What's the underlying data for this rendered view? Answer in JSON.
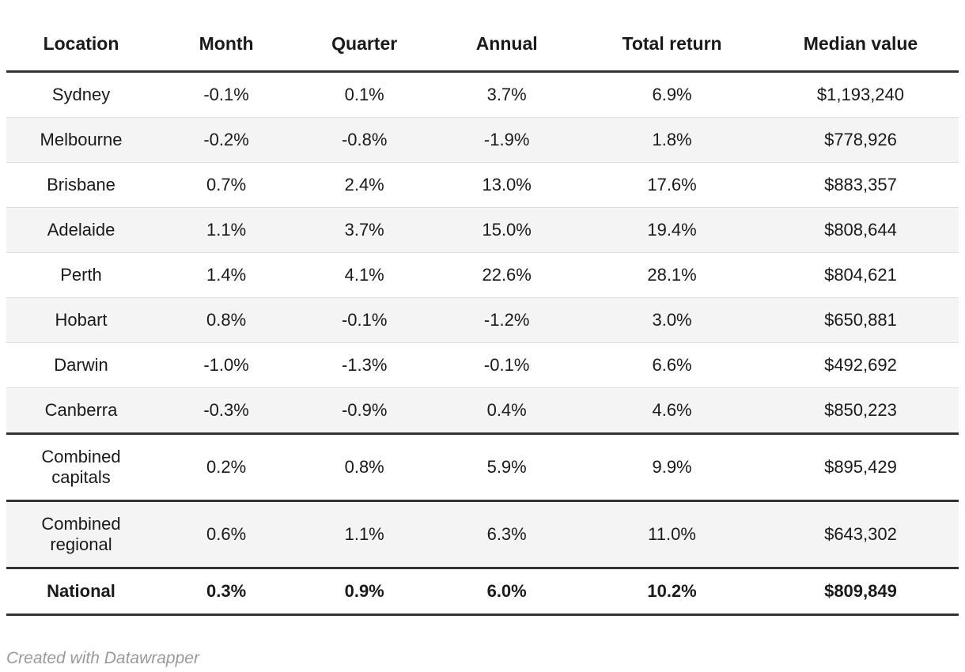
{
  "chart_data": {
    "type": "table",
    "columns": [
      "Location",
      "Month",
      "Quarter",
      "Annual",
      "Total return",
      "Median value"
    ],
    "rows": [
      {
        "cells": [
          "Sydney",
          "-0.1%",
          "0.1%",
          "3.7%",
          "6.9%",
          "$1,193,240"
        ],
        "bold": false,
        "divider_after": false
      },
      {
        "cells": [
          "Melbourne",
          "-0.2%",
          "-0.8%",
          "-1.9%",
          "1.8%",
          "$778,926"
        ],
        "bold": false,
        "divider_after": false
      },
      {
        "cells": [
          "Brisbane",
          "0.7%",
          "2.4%",
          "13.0%",
          "17.6%",
          "$883,357"
        ],
        "bold": false,
        "divider_after": false
      },
      {
        "cells": [
          "Adelaide",
          "1.1%",
          "3.7%",
          "15.0%",
          "19.4%",
          "$808,644"
        ],
        "bold": false,
        "divider_after": false
      },
      {
        "cells": [
          "Perth",
          "1.4%",
          "4.1%",
          "22.6%",
          "28.1%",
          "$804,621"
        ],
        "bold": false,
        "divider_after": false
      },
      {
        "cells": [
          "Hobart",
          "0.8%",
          "-0.1%",
          "-1.2%",
          "3.0%",
          "$650,881"
        ],
        "bold": false,
        "divider_after": false
      },
      {
        "cells": [
          "Darwin",
          "-1.0%",
          "-1.3%",
          "-0.1%",
          "6.6%",
          "$492,692"
        ],
        "bold": false,
        "divider_after": false
      },
      {
        "cells": [
          "Canberra",
          "-0.3%",
          "-0.9%",
          "0.4%",
          "4.6%",
          "$850,223"
        ],
        "bold": false,
        "divider_after": true
      },
      {
        "cells": [
          "Combined capitals",
          "0.2%",
          "0.8%",
          "5.9%",
          "9.9%",
          "$895,429"
        ],
        "bold": false,
        "divider_after": true
      },
      {
        "cells": [
          "Combined regional",
          "0.6%",
          "1.1%",
          "6.3%",
          "11.0%",
          "$643,302"
        ],
        "bold": false,
        "divider_after": true
      },
      {
        "cells": [
          "National",
          "0.3%",
          "0.9%",
          "6.0%",
          "10.2%",
          "$809,849"
        ],
        "bold": true,
        "divider_after": true
      }
    ]
  },
  "footer": {
    "attribution": "Created with Datawrapper"
  },
  "colors": {
    "header_border": "#333333",
    "section_border": "#333333",
    "row_stripe": "#f4f4f4",
    "row_divider": "#e0e0e0",
    "text": "#1a1a1a",
    "attribution_text": "#9a9a9a",
    "background": "#ffffff"
  }
}
